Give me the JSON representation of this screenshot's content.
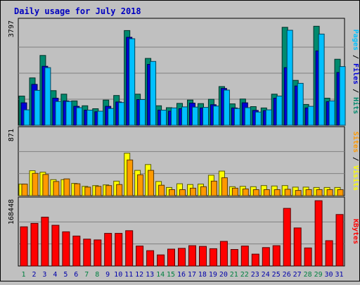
{
  "colors": {
    "background": "#c0c0c0",
    "frame": "#000000",
    "grid": "#808080",
    "title": "#0000c0",
    "hits": "#008a6e",
    "files": "#0000d8",
    "pages": "#00c0ff",
    "visits": "#ffff00",
    "sites": "#ff9900",
    "kbytes": "#ff0000",
    "day_weekday": "#0000aa",
    "day_weekend": "#008040"
  },
  "chart_data": {
    "title": "Daily usage for July 2018",
    "type": "bar",
    "categories": [
      "1",
      "2",
      "3",
      "4",
      "5",
      "6",
      "7",
      "8",
      "9",
      "10",
      "11",
      "12",
      "13",
      "14",
      "15",
      "16",
      "17",
      "18",
      "19",
      "20",
      "21",
      "22",
      "23",
      "24",
      "25",
      "26",
      "27",
      "28",
      "29",
      "30",
      "31"
    ],
    "weekend_days": [
      "1",
      "7",
      "8",
      "14",
      "15",
      "21",
      "22",
      "28",
      "29"
    ],
    "panels": [
      {
        "id": "hits-files-pages",
        "max_label": "3797",
        "ylim": [
          0,
          3797
        ],
        "legend": [
          {
            "name": "Pages",
            "color_key": "pages"
          },
          {
            "name": "Files",
            "color_key": "files"
          },
          {
            "name": "Hits",
            "color_key": "hits"
          }
        ],
        "series": [
          {
            "name": "Hits",
            "color_key": "hits",
            "values": [
              1080,
              1750,
              2580,
              1280,
              1150,
              900,
              720,
              610,
              930,
              1100,
              3500,
              1150,
              2470,
              720,
              650,
              810,
              930,
              800,
              960,
              1430,
              790,
              970,
              690,
              640,
              1150,
              3620,
              1660,
              770,
              3660,
              1000,
              2440
            ]
          },
          {
            "name": "Files",
            "color_key": "files",
            "values": [
              830,
              1510,
              2180,
              1000,
              900,
              700,
              560,
              500,
              700,
              860,
              3250,
              950,
              2250,
              560,
              520,
              610,
              820,
              640,
              760,
              1360,
              640,
              830,
              550,
              540,
              1000,
              2130,
              1450,
              640,
              2750,
              870,
              1950
            ]
          },
          {
            "name": "Pages",
            "color_key": "pages",
            "values": [
              570,
              1290,
              2130,
              880,
              880,
              650,
              560,
              520,
              620,
              840,
              3200,
              950,
              2360,
              560,
              640,
              680,
              670,
              660,
              710,
              1300,
              620,
              650,
              490,
              570,
              1080,
              3510,
              1550,
              700,
              3370,
              900,
              2170
            ]
          }
        ]
      },
      {
        "id": "visits-sites",
        "max_label": "871",
        "ylim": [
          0,
          871
        ],
        "legend": [
          {
            "name": "Sites",
            "color_key": "sites"
          },
          {
            "name": "Visits",
            "color_key": "visits"
          }
        ],
        "series": [
          {
            "name": "Visits",
            "color_key": "visits",
            "values": [
              155,
              335,
              315,
              215,
              215,
              165,
              125,
              135,
              145,
              195,
              571,
              340,
              418,
              190,
              110,
              160,
              150,
              155,
              275,
              330,
              120,
              125,
              120,
              135,
              130,
              135,
              115,
              115,
              110,
              110,
              110
            ]
          },
          {
            "name": "Sites",
            "color_key": "sites",
            "values": [
              155,
              300,
              285,
              190,
              225,
              160,
              115,
              125,
              135,
              150,
              480,
              280,
              340,
              140,
              80,
              80,
              100,
              120,
              195,
              240,
              100,
              90,
              80,
              80,
              80,
              85,
              70,
              80,
              80,
              80,
              80
            ]
          }
        ]
      },
      {
        "id": "kbytes",
        "max_label": "168448",
        "ylim": [
          0,
          168448
        ],
        "legend": [
          {
            "name": "KBytes",
            "color_key": "kbytes"
          }
        ],
        "series": [
          {
            "name": "KBytes",
            "color_key": "kbytes",
            "values": [
              102000,
              111000,
              127000,
              106000,
              89000,
              78000,
              70000,
              68000,
              85000,
              85000,
              92000,
              52000,
              40000,
              29000,
              44000,
              46000,
              53000,
              51000,
              45000,
              64000,
              43000,
              52000,
              31000,
              48000,
              53000,
              150000,
              99000,
              47000,
              170000,
              66000,
              134000
            ]
          }
        ]
      }
    ]
  }
}
